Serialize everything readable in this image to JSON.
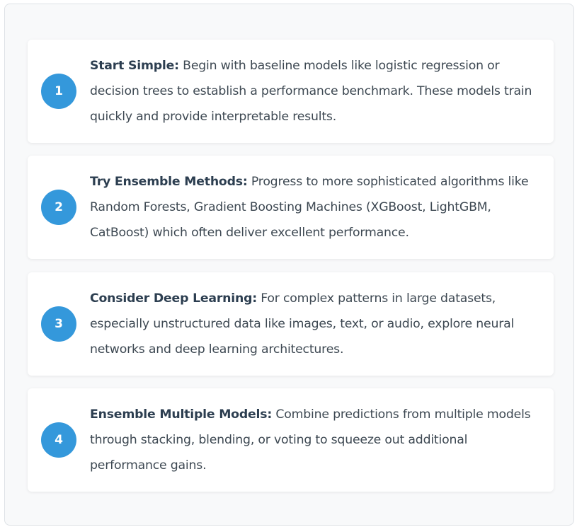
{
  "accent_color": "#3498db",
  "steps": [
    {
      "number": "1",
      "title": "Start Simple:",
      "text": " Begin with baseline models like logistic regression or decision trees to establish a performance benchmark. These models train quickly and provide interpretable results."
    },
    {
      "number": "2",
      "title": "Try Ensemble Methods:",
      "text": " Progress to more sophisticated algorithms like Random Forests, Gradient Boosting Machines (XGBoost, LightGBM, CatBoost) which often deliver excellent performance."
    },
    {
      "number": "3",
      "title": "Consider Deep Learning:",
      "text": " For complex patterns in large datasets, especially unstructured data like images, text, or audio, explore neural networks and deep learning architectures."
    },
    {
      "number": "4",
      "title": "Ensemble Multiple Models:",
      "text": " Combine predictions from multiple models through stacking, blending, or voting to squeeze out additional performance gains."
    }
  ]
}
